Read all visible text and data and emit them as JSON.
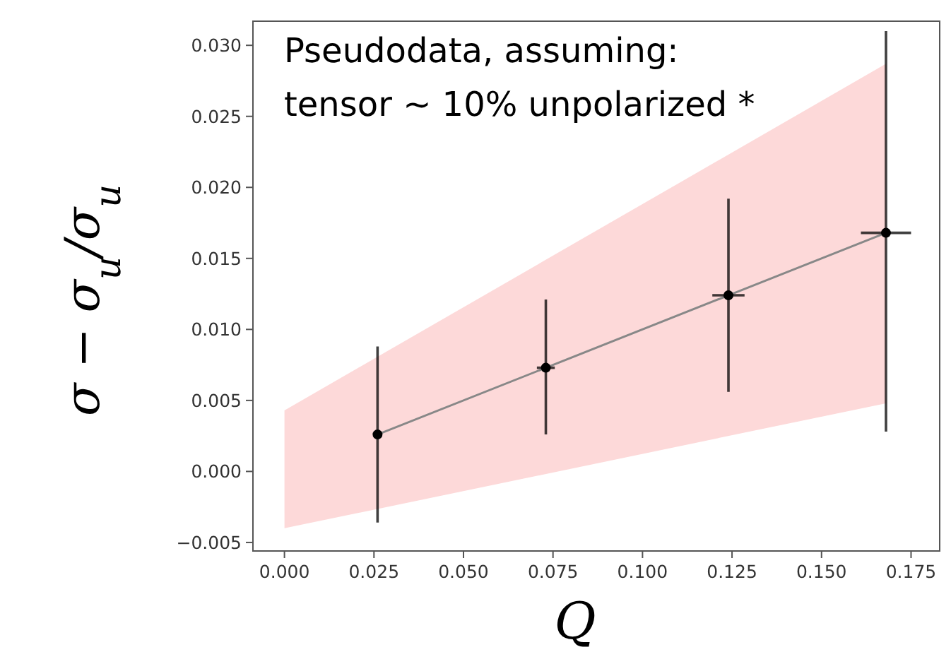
{
  "chart_data": {
    "type": "scatter",
    "xlabel": "Q",
    "ylabel": "σ − σ$_{u}$/σ$_{u}$",
    "annotations": [
      "Pseudodata, assuming:\ntensor ~ 10% unpolarized *"
    ],
    "xlim": [
      -0.0088,
      0.183
    ],
    "ylim": [
      -0.0056,
      0.0317
    ],
    "xticks": [
      {
        "value": 0,
        "label": "0.000"
      },
      0.025,
      {
        "value": 0.05,
        "label": "0.050"
      },
      0.075,
      {
        "value": 0.1,
        "label": "0.100"
      },
      0.125,
      {
        "value": 0.15,
        "label": "0.150"
      },
      0.175
    ],
    "yticks": [
      {
        "value": -0.005,
        "label": "−0.005"
      },
      {
        "value": 0,
        "label": "0.000"
      },
      0.005,
      {
        "value": 0.01,
        "label": "0.010"
      },
      0.015,
      {
        "value": 0.02,
        "label": "0.020"
      },
      0.025,
      {
        "value": 0.03,
        "label": "0.030"
      }
    ],
    "grid": false,
    "series": [
      {
        "type": "line",
        "color": "#fdd9d9",
        "marker": "none",
        "x": [
          0,
          0.168
        ],
        "values": [
          null,
          null
        ],
        "lower": [
          -0.004,
          0.0048
        ],
        "upper": [
          0.0043,
          0.0287
        ]
      },
      {
        "type": "line",
        "color": "#888888",
        "marker": "none",
        "x": [
          0.026,
          0.073,
          0.124,
          0.168
        ],
        "values": [
          0.0026,
          0.0073,
          0.0124,
          0.0168
        ]
      },
      {
        "color": "#000000",
        "marker": "circle",
        "x": [
          0.026,
          0.073,
          0.124,
          0.168
        ],
        "values": [
          0.0026,
          0.0073,
          0.0124,
          0.0168
        ],
        "errors": [
          [
            -0.0036,
            0.0088
          ],
          [
            0.0026,
            0.0121
          ],
          [
            0.0056,
            0.0192
          ],
          [
            0.0028,
            0.031
          ]
        ],
        "xerrors": [
          null,
          [
            0.0705,
            0.0755
          ],
          [
            0.1195,
            0.1285
          ],
          [
            0.161,
            0.175
          ]
        ]
      }
    ]
  }
}
